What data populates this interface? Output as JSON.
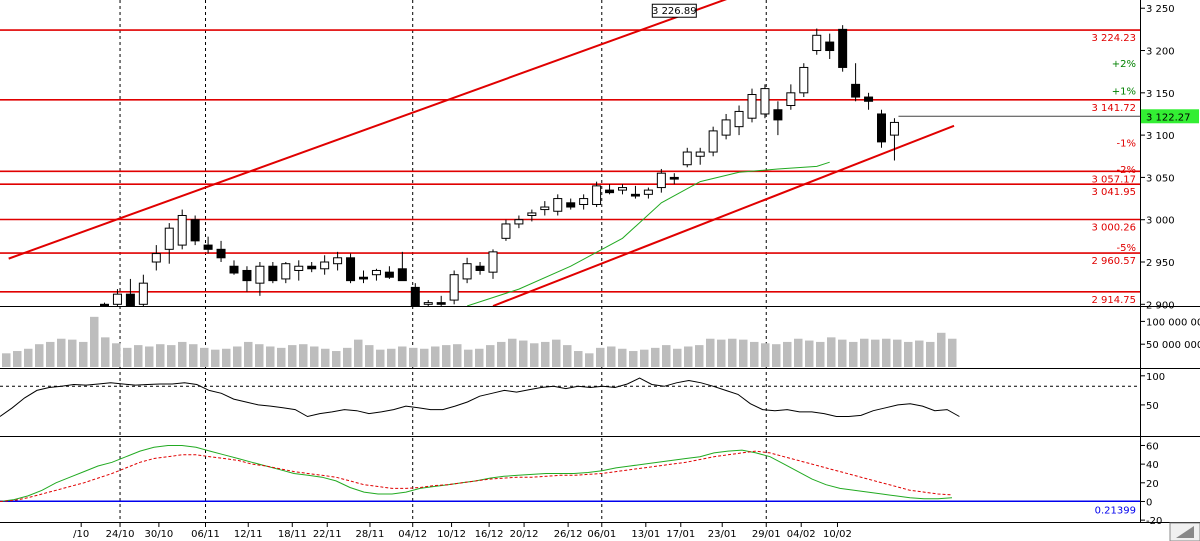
{
  "chart_data": [
    {
      "type": "candlestick",
      "panel": "price",
      "ylim": [
        2898,
        3255
      ],
      "y_ticks": [
        "3 250",
        "3 200",
        "3 150",
        "3 100",
        "3 050",
        "3 000",
        "2 950",
        "2 900"
      ],
      "y_tick_values": [
        3250,
        3200,
        3150,
        3100,
        3050,
        3000,
        2950,
        2900
      ],
      "x_labels": [
        "/10",
        "24/10",
        "30/10",
        "06/11",
        "12/11",
        "18/11",
        "22/11",
        "28/11",
        "04/12",
        "10/12",
        "16/12",
        "20/12",
        "26/12",
        "06/01",
        "13/01",
        "17/01",
        "23/01",
        "29/01",
        "04/02",
        "10/02"
      ],
      "x_label_bars": [
        -1.8,
        1.2,
        4.2,
        7.8,
        11.1,
        14.5,
        17.2,
        20.5,
        23.8,
        26.8,
        29.7,
        32.4,
        35.8,
        38.4,
        41.8,
        44.5,
        47.7,
        51.1,
        53.8,
        56.6
      ],
      "vertical_gridlines_at_labels": [
        "24/10",
        "06/11",
        "04/12",
        "06/01",
        "29/01"
      ],
      "horizontal_levels": [
        {
          "value": 3224.23,
          "label": "3 224.23"
        },
        {
          "value": 3141.72,
          "label": "3 141.72"
        },
        {
          "value": 3057.17,
          "label": "3 057.17"
        },
        {
          "value": 3041.95,
          "label": "3 041.95"
        },
        {
          "value": 3000.26,
          "label": "3 000.26"
        },
        {
          "value": 2960.57,
          "label": "2 960.57"
        },
        {
          "value": 2914.75,
          "label": "2 914.75"
        }
      ],
      "percent_marks": [
        {
          "label": "+2%",
          "value": 3185
        },
        {
          "label": "+1%",
          "value": 3153
        },
        {
          "label": "-1%",
          "value": 3091
        },
        {
          "label": "-2%",
          "value": 3060
        },
        {
          "label": "-5%",
          "value": 2968
        }
      ],
      "peak_annotation": {
        "label": "3 226.89",
        "bar": 44,
        "value": 3250
      },
      "last_price": {
        "label": "3 122.27",
        "value": 3122.27
      },
      "trendlines": [
        {
          "from": {
            "bar": -7.4,
            "value": 2954
          },
          "to": {
            "bar": 49.7,
            "value": 3270
          }
        },
        {
          "from": {
            "bar": 30,
            "value": 2898
          },
          "to": {
            "bar": 65.6,
            "value": 3111
          }
        }
      ],
      "moving_average": [
        {
          "bar": 28,
          "value": 2898
        },
        {
          "bar": 32,
          "value": 2918
        },
        {
          "bar": 36,
          "value": 2945
        },
        {
          "bar": 40,
          "value": 2978
        },
        {
          "bar": 43,
          "value": 3020
        },
        {
          "bar": 46,
          "value": 3045
        },
        {
          "bar": 49,
          "value": 3056
        },
        {
          "bar": 52,
          "value": 3060
        },
        {
          "bar": 55,
          "value": 3063
        },
        {
          "bar": 56,
          "value": 3068
        }
      ],
      "candles": [
        {
          "o": 2900,
          "h": 2902,
          "l": 2896,
          "c": 2898
        },
        {
          "o": 2900,
          "h": 2918,
          "l": 2898,
          "c": 2912
        },
        {
          "o": 2912,
          "h": 2930,
          "l": 2898,
          "c": 2895
        },
        {
          "o": 2900,
          "h": 2935,
          "l": 2898,
          "c": 2925
        },
        {
          "o": 2950,
          "h": 2970,
          "l": 2940,
          "c": 2960
        },
        {
          "o": 2965,
          "h": 2996,
          "l": 2948,
          "c": 2990
        },
        {
          "o": 2970,
          "h": 3012,
          "l": 2965,
          "c": 3005
        },
        {
          "o": 3000,
          "h": 3005,
          "l": 2970,
          "c": 2975
        },
        {
          "o": 2970,
          "h": 2980,
          "l": 2960,
          "c": 2965
        },
        {
          "o": 2965,
          "h": 2975,
          "l": 2950,
          "c": 2955
        },
        {
          "o": 2945,
          "h": 2952,
          "l": 2935,
          "c": 2937
        },
        {
          "o": 2940,
          "h": 2945,
          "l": 2915,
          "c": 2928
        },
        {
          "o": 2925,
          "h": 2950,
          "l": 2910,
          "c": 2945
        },
        {
          "o": 2945,
          "h": 2950,
          "l": 2925,
          "c": 2928
        },
        {
          "o": 2930,
          "h": 2950,
          "l": 2925,
          "c": 2948
        },
        {
          "o": 2940,
          "h": 2952,
          "l": 2928,
          "c": 2945
        },
        {
          "o": 2945,
          "h": 2950,
          "l": 2938,
          "c": 2942
        },
        {
          "o": 2942,
          "h": 2958,
          "l": 2935,
          "c": 2950
        },
        {
          "o": 2948,
          "h": 2962,
          "l": 2940,
          "c": 2955
        },
        {
          "o": 2955,
          "h": 2960,
          "l": 2925,
          "c": 2928
        },
        {
          "o": 2932,
          "h": 2940,
          "l": 2925,
          "c": 2930
        },
        {
          "o": 2935,
          "h": 2942,
          "l": 2928,
          "c": 2940
        },
        {
          "o": 2938,
          "h": 2945,
          "l": 2930,
          "c": 2932
        },
        {
          "o": 2942,
          "h": 2962,
          "l": 2930,
          "c": 2928
        },
        {
          "o": 2920,
          "h": 2925,
          "l": 2895,
          "c": 2898
        },
        {
          "o": 2900,
          "h": 2905,
          "l": 2895,
          "c": 2902
        },
        {
          "o": 2902,
          "h": 2910,
          "l": 2895,
          "c": 2900
        },
        {
          "o": 2905,
          "h": 2940,
          "l": 2900,
          "c": 2935
        },
        {
          "o": 2930,
          "h": 2955,
          "l": 2925,
          "c": 2948
        },
        {
          "o": 2945,
          "h": 2950,
          "l": 2935,
          "c": 2940
        },
        {
          "o": 2938,
          "h": 2965,
          "l": 2930,
          "c": 2962
        },
        {
          "o": 2978,
          "h": 3000,
          "l": 2975,
          "c": 2995
        },
        {
          "o": 2995,
          "h": 3005,
          "l": 2990,
          "c": 3000
        },
        {
          "o": 3005,
          "h": 3012,
          "l": 2998,
          "c": 3008
        },
        {
          "o": 3012,
          "h": 3022,
          "l": 3005,
          "c": 3015
        },
        {
          "o": 3010,
          "h": 3030,
          "l": 3005,
          "c": 3025
        },
        {
          "o": 3020,
          "h": 3025,
          "l": 3012,
          "c": 3015
        },
        {
          "o": 3018,
          "h": 3030,
          "l": 3012,
          "c": 3025
        },
        {
          "o": 3018,
          "h": 3045,
          "l": 3015,
          "c": 3040
        },
        {
          "o": 3035,
          "h": 3042,
          "l": 3030,
          "c": 3032
        },
        {
          "o": 3035,
          "h": 3042,
          "l": 3030,
          "c": 3038
        },
        {
          "o": 3030,
          "h": 3040,
          "l": 3025,
          "c": 3028
        },
        {
          "o": 3030,
          "h": 3038,
          "l": 3025,
          "c": 3035
        },
        {
          "o": 3038,
          "h": 3060,
          "l": 3032,
          "c": 3055
        },
        {
          "o": 3050,
          "h": 3055,
          "l": 3042,
          "c": 3048
        },
        {
          "o": 3065,
          "h": 3085,
          "l": 3062,
          "c": 3080
        },
        {
          "o": 3075,
          "h": 3085,
          "l": 3065,
          "c": 3080
        },
        {
          "o": 3080,
          "h": 3110,
          "l": 3075,
          "c": 3105
        },
        {
          "o": 3100,
          "h": 3125,
          "l": 3095,
          "c": 3118
        },
        {
          "o": 3110,
          "h": 3135,
          "l": 3100,
          "c": 3128
        },
        {
          "o": 3120,
          "h": 3155,
          "l": 3115,
          "c": 3148
        },
        {
          "o": 3125,
          "h": 3160,
          "l": 3120,
          "c": 3155
        },
        {
          "o": 3130,
          "h": 3140,
          "l": 3100,
          "c": 3118
        },
        {
          "o": 3135,
          "h": 3160,
          "l": 3130,
          "c": 3150
        },
        {
          "o": 3150,
          "h": 3185,
          "l": 3145,
          "c": 3180
        },
        {
          "o": 3200,
          "h": 3226,
          "l": 3195,
          "c": 3218
        },
        {
          "o": 3210,
          "h": 3220,
          "l": 3190,
          "c": 3200
        },
        {
          "o": 3225,
          "h": 3230,
          "l": 3175,
          "c": 3180
        },
        {
          "o": 3160,
          "h": 3185,
          "l": 3140,
          "c": 3145
        },
        {
          "o": 3145,
          "h": 3150,
          "l": 3130,
          "c": 3140
        },
        {
          "o": 3125,
          "h": 3130,
          "l": 3085,
          "c": 3092
        },
        {
          "o": 3100,
          "h": 3120,
          "l": 3070,
          "c": 3115
        }
      ]
    },
    {
      "type": "bar",
      "panel": "volume",
      "ylim": [
        0,
        125000000
      ],
      "y_ticks": [
        "100 000 000",
        "50 000 000"
      ],
      "y_tick_values": [
        100000000,
        50000000
      ],
      "values": [
        30000000,
        35000000,
        40000000,
        50000000,
        55000000,
        62000000,
        60000000,
        55000000,
        110000000,
        65000000,
        52000000,
        42000000,
        48000000,
        45000000,
        50000000,
        48000000,
        55000000,
        50000000,
        42000000,
        38000000,
        40000000,
        45000000,
        55000000,
        50000000,
        45000000,
        42000000,
        48000000,
        50000000,
        45000000,
        40000000,
        35000000,
        42000000,
        60000000,
        48000000,
        38000000,
        40000000,
        45000000,
        42000000,
        40000000,
        45000000,
        48000000,
        50000000,
        38000000,
        40000000,
        48000000,
        55000000,
        62000000,
        58000000,
        52000000,
        55000000,
        60000000,
        48000000,
        35000000,
        30000000,
        42000000,
        45000000,
        40000000,
        35000000,
        38000000,
        42000000,
        48000000,
        40000000,
        45000000,
        48000000,
        62000000,
        60000000,
        62000000,
        60000000,
        55000000,
        52000000,
        50000000,
        55000000,
        62000000,
        58000000,
        55000000,
        65000000,
        60000000,
        55000000,
        62000000,
        60000000,
        62000000,
        60000000,
        55000000,
        58000000,
        55000000,
        75000000,
        62000000
      ]
    },
    {
      "type": "line",
      "panel": "oscillator",
      "ylim": [
        0,
        110
      ],
      "y_ticks": [
        "100",
        "50"
      ],
      "y_tick_values": [
        100,
        50
      ],
      "reference_line": 82,
      "series": [
        {
          "values": [
            30,
            45,
            62,
            75,
            80,
            82,
            85,
            84,
            86,
            88,
            86,
            84,
            85,
            86,
            86,
            88,
            85,
            75,
            70,
            60,
            55,
            50,
            48,
            45,
            42,
            30,
            35,
            38,
            42,
            40,
            35,
            38,
            42,
            48,
            45,
            42,
            42,
            48,
            55,
            65,
            70,
            75,
            72,
            76,
            80,
            82,
            78,
            82,
            80,
            82,
            80,
            86,
            96,
            85,
            82,
            88,
            92,
            88,
            82,
            75,
            68,
            52,
            42,
            40,
            42,
            38,
            38,
            35,
            30,
            30,
            32,
            40,
            45,
            50,
            52,
            48,
            40,
            42,
            30
          ]
        }
      ]
    },
    {
      "type": "line",
      "panel": "macd",
      "ylim": [
        -22,
        68
      ],
      "y_ticks": [
        "60",
        "40",
        "20",
        "0",
        "-20"
      ],
      "y_tick_values": [
        60,
        40,
        20,
        0,
        -20
      ],
      "zero_line_label": "0.21399",
      "zero_line_value": 0.21399,
      "series": [
        {
          "values": [
            0,
            2,
            6,
            12,
            20,
            26,
            32,
            38,
            42,
            48,
            54,
            58,
            60,
            60,
            58,
            54,
            50,
            46,
            42,
            38,
            34,
            30,
            28,
            26,
            22,
            15,
            10,
            8,
            8,
            10,
            14,
            16,
            18,
            20,
            22,
            25,
            27,
            28,
            29,
            30,
            30,
            30,
            31,
            33,
            36,
            38,
            40,
            42,
            44,
            46,
            48,
            52,
            54,
            55,
            52,
            48,
            40,
            32,
            24,
            18,
            14,
            12,
            10,
            8,
            6,
            4,
            3,
            3,
            4
          ]
        },
        {
          "values": [
            0,
            1,
            4,
            8,
            12,
            16,
            20,
            25,
            30,
            36,
            42,
            46,
            48,
            50,
            50,
            48,
            46,
            44,
            40,
            38,
            35,
            32,
            30,
            28,
            26,
            22,
            18,
            16,
            14,
            14,
            15,
            17,
            18,
            20,
            22,
            24,
            25,
            26,
            26,
            27,
            28,
            28,
            29,
            30,
            32,
            34,
            36,
            38,
            40,
            42,
            45,
            48,
            50,
            52,
            54,
            52,
            48,
            44,
            40,
            36,
            32,
            28,
            24,
            20,
            16,
            12,
            10,
            8,
            7
          ]
        }
      ]
    }
  ]
}
